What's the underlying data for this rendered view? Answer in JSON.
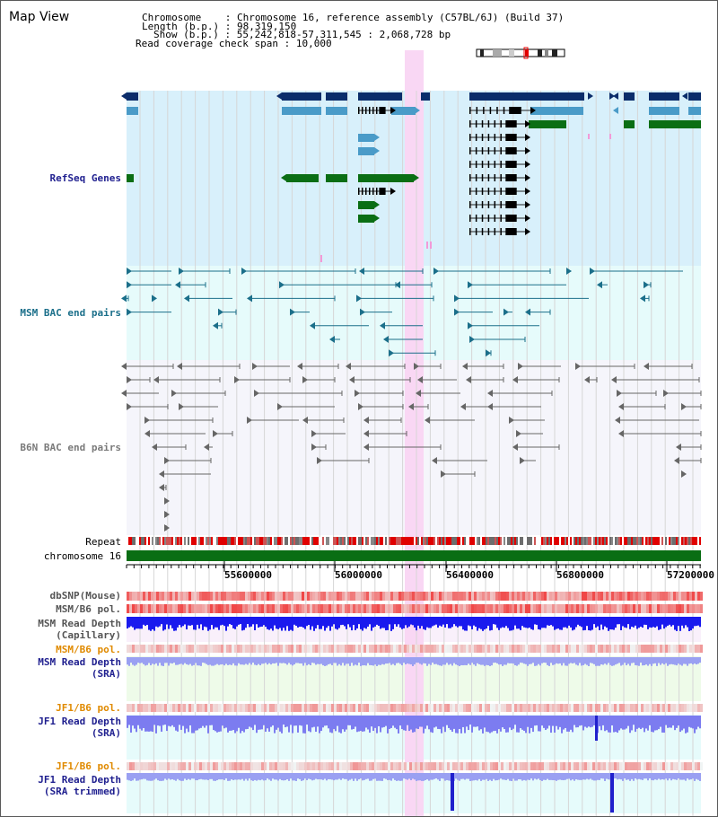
{
  "title": "Map View",
  "info": {
    "chromosome_label": "Chromosome",
    "chromosome_value": "Chromosome 16, reference assembly (C57BL/6J) (Build 37)",
    "length_label": "Length (b.p.)",
    "length_value": "98,319,150",
    "show_label": "Show (b.p.)",
    "show_value": "55,242,818-57,311,545 : 2,068,728 bp",
    "coverage_label": "Read coverage check span",
    "coverage_value": "10,000"
  },
  "tracks": {
    "refseq": "RefSeq Genes",
    "msm_bac": "MSM BAC end pairs",
    "b6n_bac": "B6N BAC end pairs",
    "repeat": "Repeat",
    "chromosome": "chromosome 16",
    "dbsnp": "dbSNP(Mouse)",
    "msm_pol1": "MSM/B6 pol.",
    "msm_depth_cap_1": "MSM Read Depth",
    "msm_depth_cap_2": "(Capillary)",
    "msm_pol2": "MSM/B6 pol.",
    "msm_depth_sra_1": "MSM Read Depth",
    "msm_depth_sra_2": "(SRA)",
    "jf1_pol1": "JF1/B6 pol.",
    "jf1_depth_1": "JF1 Read Depth",
    "jf1_depth_2": "(SRA)",
    "jf1_pol2": "JF1/B6 pol.",
    "jf1_trim_1": "JF1 Read Depth",
    "jf1_trim_2": "(SRA trimmed)"
  },
  "axis_ticks": [
    "55600000",
    "56000000",
    "56400000",
    "56800000",
    "57200000"
  ],
  "colors": {
    "refseq_bg": "#d8f0fb",
    "msm_bg": "#e6fbfb",
    "b6n_bg": "#f5f5fb",
    "refseq_dark": "#0b2d6b",
    "refseq_mid": "#4a9bc8",
    "refseq_green": "#0a6e14",
    "highlight": "#f9d7f4",
    "label_blue": "#1f1f8f",
    "label_teal": "#1b6f8a",
    "label_orange": "#e08a00",
    "chromosome_bar": "#0a6e14"
  }
}
